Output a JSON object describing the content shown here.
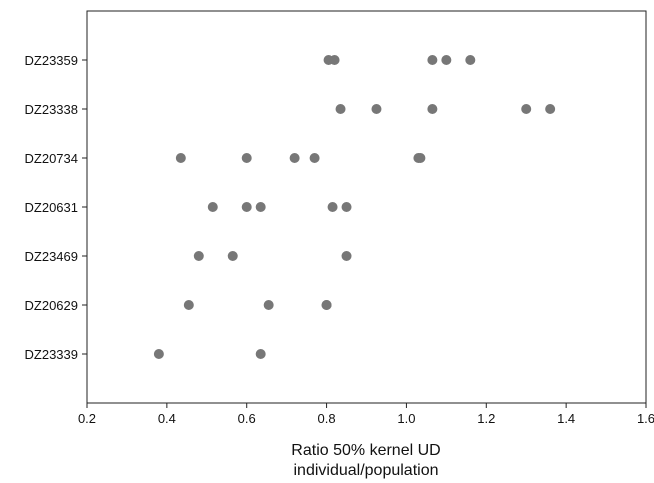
{
  "chart_data": {
    "type": "scatter",
    "orientation": "horizontal-categories",
    "xlabel_lines": [
      "Ratio 50% kernel UD",
      "individual/population"
    ],
    "xlim": [
      0.2,
      1.6
    ],
    "xticks": [
      0.2,
      0.4,
      0.6,
      0.8,
      1.0,
      1.2,
      1.4,
      1.6
    ],
    "xtick_labels": [
      "0.2",
      "0.4",
      "0.6",
      "0.8",
      "1.0",
      "1.2",
      "1.4",
      "1.6"
    ],
    "grid": false,
    "point_color": "#777777",
    "categories": [
      "DZ23359",
      "DZ23338",
      "DZ20734",
      "DZ20631",
      "DZ23469",
      "DZ20629",
      "DZ23339"
    ],
    "values": [
      [
        0.805,
        0.82,
        1.065,
        1.1,
        1.16
      ],
      [
        0.835,
        0.925,
        1.065,
        1.3,
        1.36
      ],
      [
        0.435,
        0.6,
        0.72,
        0.77,
        1.03,
        1.035
      ],
      [
        0.515,
        0.6,
        0.635,
        0.815,
        0.85
      ],
      [
        0.48,
        0.565,
        0.85
      ],
      [
        0.455,
        0.655,
        0.8,
        0.8
      ],
      [
        0.38,
        0.635
      ]
    ]
  }
}
